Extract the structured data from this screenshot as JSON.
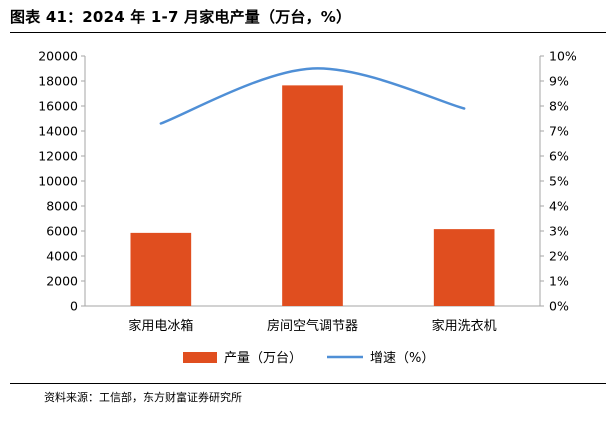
{
  "figure_title": "图表 41：2024 年 1-7 月家电产量（万台，%）",
  "source_note": "资料来源：工信部，东方财富证券研究所",
  "colors": {
    "bar": "#e04e1f",
    "line": "#4f8fd6",
    "axis": "#a6a6a6"
  },
  "chart_data": {
    "type": "bar",
    "title": "",
    "categories": [
      "家用电冰箱",
      "房间空气调节器",
      "家用洗衣机"
    ],
    "series": [
      {
        "name": "产量（万台）",
        "type": "bar",
        "axis": "left",
        "values": [
          5850,
          17650,
          6150
        ]
      },
      {
        "name": "增速（%）",
        "type": "line",
        "axis": "right",
        "smooth": true,
        "values": [
          7.3,
          9.5,
          7.9
        ]
      }
    ],
    "y_left": {
      "min": 0,
      "max": 20000,
      "step": 2000,
      "ticks": [
        "0",
        "2000",
        "4000",
        "6000",
        "8000",
        "10000",
        "12000",
        "14000",
        "16000",
        "18000",
        "20000"
      ]
    },
    "y_right": {
      "min": 0,
      "max": 10,
      "step": 1,
      "ticks": [
        "0%",
        "1%",
        "2%",
        "3%",
        "4%",
        "5%",
        "6%",
        "7%",
        "8%",
        "9%",
        "10%"
      ]
    },
    "xlabel": "",
    "ylabel": "",
    "grid": false,
    "legend_position": "bottom"
  }
}
